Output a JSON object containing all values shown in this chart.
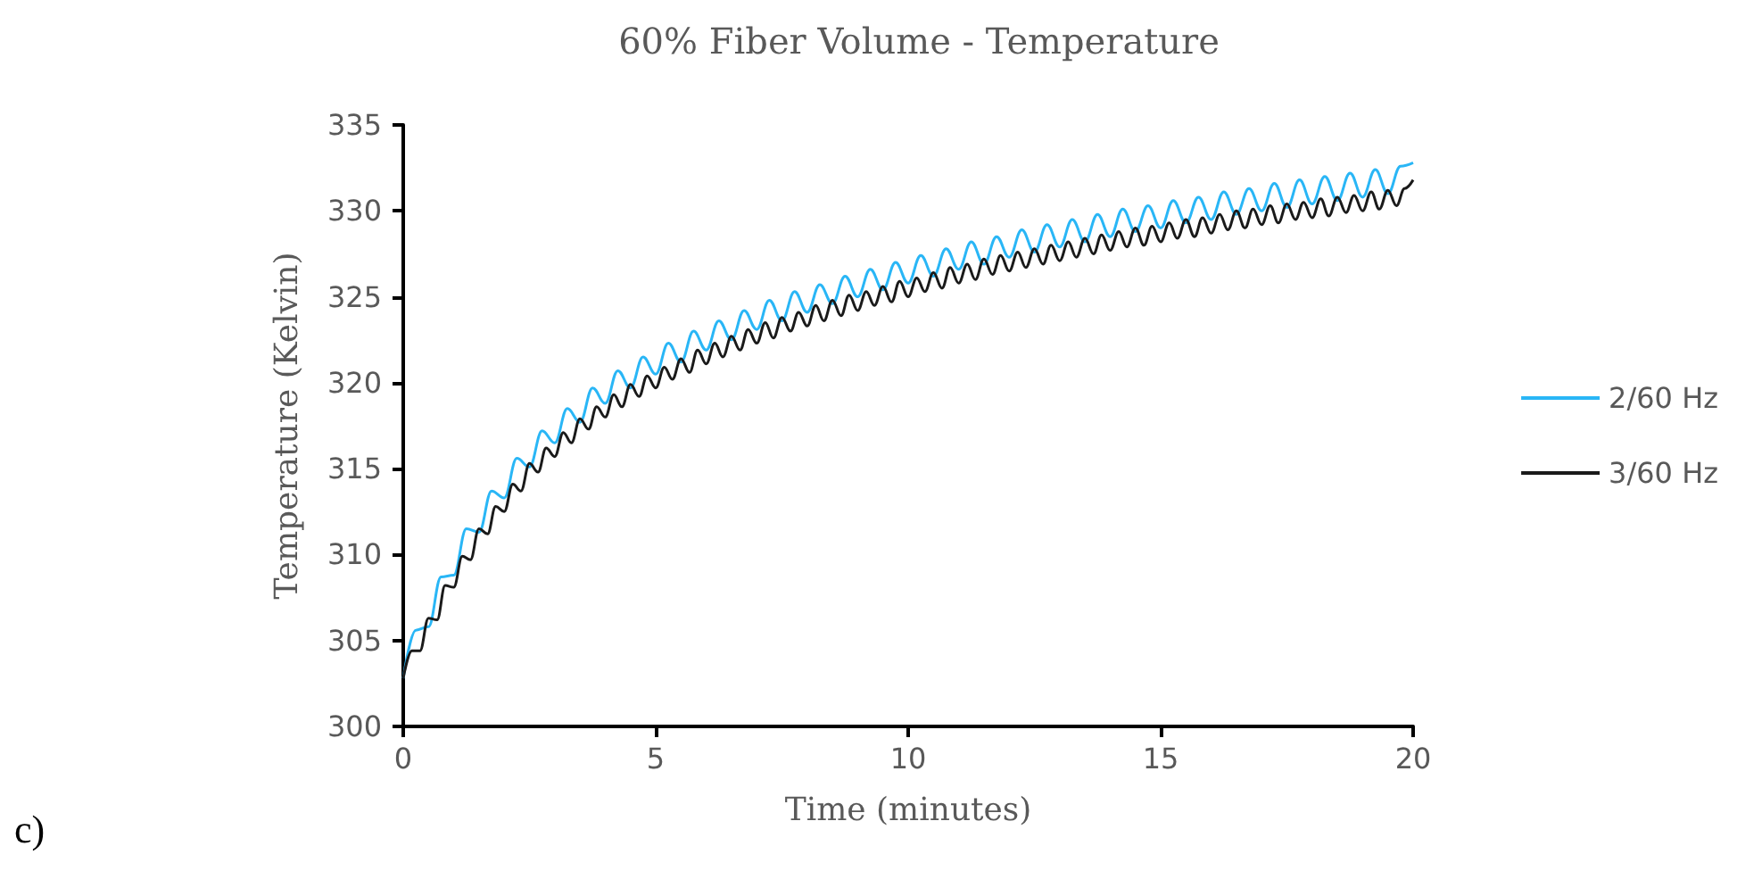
{
  "chart_data": {
    "type": "line",
    "title": "60% Fiber Volume - Temperature",
    "xlabel": "Time (minutes)",
    "ylabel": "Temperature (Kelvin)",
    "annotations": [
      "c)"
    ],
    "xlim": [
      0,
      20
    ],
    "xticks": [
      0,
      5,
      10,
      15,
      20
    ],
    "ylim": [
      300,
      335
    ],
    "yticks": [
      300,
      305,
      310,
      315,
      320,
      325,
      330,
      335
    ],
    "grid": false,
    "legend": "right",
    "marker": "none",
    "line_style": "solid",
    "series": [
      {
        "name": "2/60 Hz",
        "color": "#29b6f6",
        "x": [
          0,
          0.25,
          0.5,
          0.75,
          1,
          1.25,
          1.5,
          1.75,
          2,
          2.25,
          2.5,
          2.75,
          3,
          3.25,
          3.5,
          3.75,
          4,
          4.25,
          4.5,
          4.75,
          5,
          5.25,
          5.5,
          5.75,
          6,
          6.25,
          6.5,
          6.75,
          7,
          7.25,
          7.5,
          7.75,
          8,
          8.25,
          8.5,
          8.75,
          9,
          9.25,
          9.5,
          9.75,
          10,
          10.25,
          10.5,
          10.75,
          11,
          11.25,
          11.5,
          11.75,
          12,
          12.25,
          12.5,
          12.75,
          13,
          13.25,
          13.5,
          13.75,
          14,
          14.25,
          14.5,
          14.75,
          15,
          15.25,
          15.5,
          15.75,
          16,
          16.25,
          16.5,
          16.75,
          17,
          17.25,
          17.5,
          17.75,
          18,
          18.25,
          18.5,
          18.75,
          19,
          19.25,
          19.5,
          19.75,
          20
        ],
        "values": [
          302.8,
          305.6,
          305.8,
          308.7,
          308.8,
          311.5,
          311.3,
          313.7,
          313.3,
          315.6,
          315.1,
          317.2,
          316.5,
          318.5,
          317.7,
          319.7,
          318.8,
          320.7,
          319.7,
          321.5,
          320.5,
          322.3,
          321.2,
          323.0,
          321.9,
          323.6,
          322.5,
          324.2,
          323.1,
          324.8,
          323.6,
          325.3,
          324.1,
          325.7,
          324.6,
          326.2,
          325.0,
          326.6,
          325.4,
          327.0,
          325.8,
          327.4,
          326.2,
          327.8,
          326.6,
          328.2,
          326.9,
          328.5,
          327.3,
          328.9,
          327.6,
          329.2,
          327.9,
          329.5,
          328.2,
          329.8,
          328.5,
          330.1,
          328.8,
          330.3,
          329.0,
          330.6,
          329.3,
          330.8,
          329.5,
          331.1,
          329.8,
          331.3,
          330.0,
          331.6,
          330.2,
          331.8,
          330.4,
          332.0,
          330.6,
          332.2,
          330.8,
          332.4,
          331.0,
          332.6,
          332.8
        ]
      },
      {
        "name": "3/60 Hz",
        "color": "#1a1a1a",
        "x": [
          0,
          0.17,
          0.33,
          0.5,
          0.67,
          0.83,
          1,
          1.17,
          1.33,
          1.5,
          1.67,
          1.83,
          2,
          2.17,
          2.33,
          2.5,
          2.67,
          2.83,
          3,
          3.17,
          3.33,
          3.5,
          3.67,
          3.83,
          4,
          4.17,
          4.33,
          4.5,
          4.67,
          4.83,
          5,
          5.17,
          5.33,
          5.5,
          5.67,
          5.83,
          6,
          6.17,
          6.33,
          6.5,
          6.67,
          6.83,
          7,
          7.17,
          7.33,
          7.5,
          7.67,
          7.83,
          8,
          8.17,
          8.33,
          8.5,
          8.67,
          8.83,
          9,
          9.17,
          9.33,
          9.5,
          9.67,
          9.83,
          10,
          10.17,
          10.33,
          10.5,
          10.67,
          10.83,
          11,
          11.17,
          11.33,
          11.5,
          11.67,
          11.83,
          12,
          12.17,
          12.33,
          12.5,
          12.67,
          12.83,
          13,
          13.17,
          13.33,
          13.5,
          13.67,
          13.83,
          14,
          14.17,
          14.33,
          14.5,
          14.67,
          14.83,
          15,
          15.17,
          15.33,
          15.5,
          15.67,
          15.83,
          16,
          16.17,
          16.33,
          16.5,
          16.67,
          16.83,
          17,
          17.17,
          17.33,
          17.5,
          17.67,
          17.83,
          18,
          18.17,
          18.33,
          18.5,
          18.67,
          18.83,
          19,
          19.17,
          19.33,
          19.5,
          19.67,
          19.83,
          20
        ],
        "values": [
          302.8,
          304.4,
          304.4,
          306.3,
          306.2,
          308.2,
          308.1,
          309.9,
          309.7,
          311.5,
          311.2,
          312.8,
          312.5,
          314.1,
          313.7,
          315.3,
          314.8,
          316.2,
          315.7,
          317.1,
          316.5,
          317.9,
          317.3,
          318.6,
          318.0,
          319.3,
          318.6,
          319.9,
          319.2,
          320.4,
          319.7,
          320.9,
          320.2,
          321.4,
          320.6,
          321.9,
          321.1,
          322.3,
          321.5,
          322.7,
          321.9,
          323.1,
          322.3,
          323.5,
          322.6,
          323.8,
          323.0,
          324.1,
          323.3,
          324.5,
          323.6,
          324.8,
          323.9,
          325.1,
          324.2,
          325.3,
          324.5,
          325.6,
          324.7,
          325.9,
          325.0,
          326.1,
          325.3,
          326.4,
          325.5,
          326.7,
          325.8,
          326.9,
          326.0,
          327.2,
          326.3,
          327.4,
          326.5,
          327.6,
          326.7,
          327.8,
          326.9,
          328.0,
          327.1,
          328.2,
          327.3,
          328.4,
          327.5,
          328.6,
          327.7,
          328.8,
          327.9,
          329.0,
          328.0,
          329.1,
          328.2,
          329.3,
          328.4,
          329.5,
          328.5,
          329.6,
          328.7,
          329.8,
          328.9,
          330.0,
          329.0,
          330.1,
          329.2,
          330.3,
          329.3,
          330.4,
          329.5,
          330.5,
          329.6,
          330.7,
          329.7,
          330.8,
          329.9,
          330.9,
          330.0,
          331.1,
          330.1,
          331.2,
          330.3,
          331.3,
          331.8
        ]
      }
    ]
  }
}
